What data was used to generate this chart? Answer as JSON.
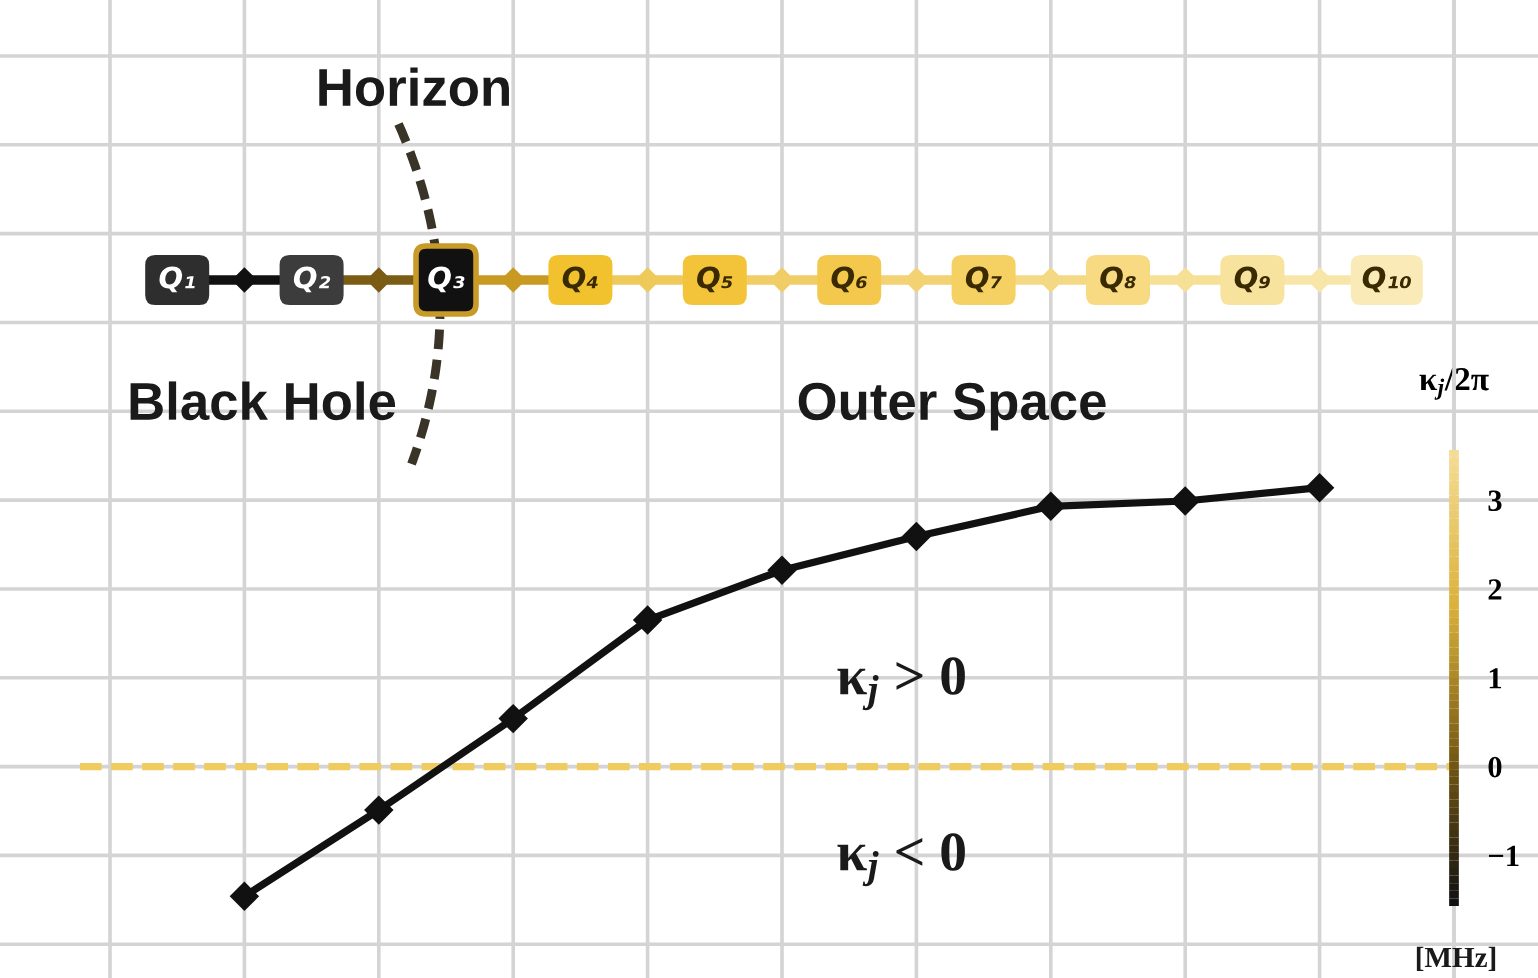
{
  "chart_data": {
    "type": "line",
    "categories": [
      null,
      null,
      null,
      null,
      null,
      null,
      null,
      null,
      null
    ],
    "series": [
      {
        "color": "#111111",
        "values": [
          -1.46,
          -0.49,
          0.54,
          1.65,
          2.21,
          2.59,
          2.93,
          2.99,
          3.14
        ]
      }
    ],
    "marker": "diamond",
    "line_style": "solid",
    "ylim": [
      -2.38,
      8.63
    ],
    "yticks": [
      {
        "value": -2,
        "label": null
      },
      {
        "value": -1,
        "label": "−1"
      },
      0,
      1,
      2,
      3,
      {
        "value": 4,
        "label": null
      },
      {
        "value": 5,
        "label": null
      },
      {
        "value": 6,
        "label": null
      },
      {
        "value": 7,
        "label": null
      },
      {
        "value": 8,
        "label": null
      }
    ],
    "ylabel": "κ$_{j}$/2π",
    "tick_labels": "y",
    "grid": true,
    "ref_lines": [
      {
        "axis": "y",
        "value": 0,
        "color": "#f0cc60",
        "line_style": "dashed"
      }
    ],
    "annotations": [
      "Horizon",
      "Black Hole",
      "Outer Space",
      "κ$_{j}$ > 0",
      "κ$_{j}$ < 0",
      "Q₁",
      "Q₂",
      "Q₃",
      "Q₄",
      "Q₅",
      "Q₆",
      "Q₇",
      "Q₈",
      "Q₉",
      "Q₁₀",
      "[MHz]"
    ]
  }
}
